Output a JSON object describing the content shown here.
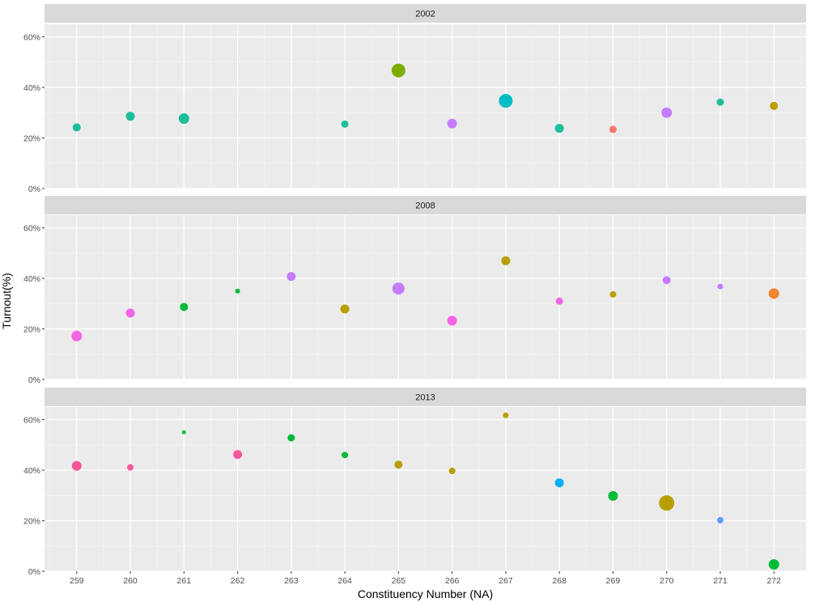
{
  "chart_data": {
    "type": "scatter",
    "xlabel": "Constituency Number (NA)",
    "ylabel": "Turnout(%)",
    "x_ticks": [
      "259",
      "260",
      "261",
      "262",
      "263",
      "264",
      "265",
      "266",
      "267",
      "268",
      "269",
      "270",
      "271",
      "272"
    ],
    "xlim": [
      258.4,
      272.6
    ],
    "ylim": [
      0,
      65
    ],
    "y_ticks": [
      {
        "value": 0,
        "label": "0%"
      },
      {
        "value": 20,
        "label": "20%"
      },
      {
        "value": 40,
        "label": "40%"
      },
      {
        "value": 60,
        "label": "60%"
      }
    ],
    "grid": true,
    "legend": "none",
    "panels": [
      {
        "title": "2002",
        "points": [
          {
            "x": 259,
            "y": 24.2,
            "size": 5,
            "color": "#1cbf9a"
          },
          {
            "x": 260,
            "y": 28.6,
            "size": 5.5,
            "color": "#1cbf9a"
          },
          {
            "x": 261,
            "y": 27.7,
            "size": 6.5,
            "color": "#1cbf9a"
          },
          {
            "x": 264,
            "y": 25.5,
            "size": 4.5,
            "color": "#1cbf9a"
          },
          {
            "x": 265,
            "y": 46.7,
            "size": 8.5,
            "color": "#7cae00"
          },
          {
            "x": 266,
            "y": 25.7,
            "size": 6,
            "color": "#c77cff"
          },
          {
            "x": 267,
            "y": 34.7,
            "size": 8.5,
            "color": "#00bfc4"
          },
          {
            "x": 268,
            "y": 23.8,
            "size": 5.5,
            "color": "#1cbf9a"
          },
          {
            "x": 269,
            "y": 23.4,
            "size": 4.5,
            "color": "#f8766d"
          },
          {
            "x": 270,
            "y": 30.0,
            "size": 6.5,
            "color": "#c77cff"
          },
          {
            "x": 271,
            "y": 34.2,
            "size": 4.5,
            "color": "#1cbf9a"
          },
          {
            "x": 272,
            "y": 32.7,
            "size": 5,
            "color": "#b79f00"
          }
        ]
      },
      {
        "title": "2008",
        "points": [
          {
            "x": 259,
            "y": 17.2,
            "size": 6.5,
            "color": "#f564e3"
          },
          {
            "x": 260,
            "y": 26.3,
            "size": 5.5,
            "color": "#f564e3"
          },
          {
            "x": 261,
            "y": 28.7,
            "size": 5,
            "color": "#00ba38"
          },
          {
            "x": 262,
            "y": 35.0,
            "size": 3,
            "color": "#00ba38"
          },
          {
            "x": 263,
            "y": 40.8,
            "size": 5.5,
            "color": "#c77cff"
          },
          {
            "x": 264,
            "y": 27.9,
            "size": 5.5,
            "color": "#b79f00"
          },
          {
            "x": 265,
            "y": 36.0,
            "size": 7.5,
            "color": "#c77cff"
          },
          {
            "x": 266,
            "y": 23.3,
            "size": 6,
            "color": "#f564e3"
          },
          {
            "x": 267,
            "y": 47.0,
            "size": 5.5,
            "color": "#b79f00"
          },
          {
            "x": 268,
            "y": 31.0,
            "size": 4.5,
            "color": "#f564e3"
          },
          {
            "x": 269,
            "y": 33.7,
            "size": 4,
            "color": "#b79f00"
          },
          {
            "x": 270,
            "y": 39.3,
            "size": 5,
            "color": "#c77cff"
          },
          {
            "x": 271,
            "y": 36.8,
            "size": 3.5,
            "color": "#c77cff"
          },
          {
            "x": 272,
            "y": 34.0,
            "size": 6.5,
            "color": "#f08732"
          }
        ]
      },
      {
        "title": "2013",
        "points": [
          {
            "x": 259,
            "y": 41.7,
            "size": 6,
            "color": "#f8569b"
          },
          {
            "x": 260,
            "y": 41.1,
            "size": 4,
            "color": "#f8569b"
          },
          {
            "x": 261,
            "y": 55.0,
            "size": 2.5,
            "color": "#00ba38"
          },
          {
            "x": 262,
            "y": 46.2,
            "size": 5.5,
            "color": "#f8569b"
          },
          {
            "x": 263,
            "y": 52.8,
            "size": 4.5,
            "color": "#00ba38"
          },
          {
            "x": 264,
            "y": 46.0,
            "size": 4,
            "color": "#00ba38"
          },
          {
            "x": 265,
            "y": 42.2,
            "size": 5,
            "color": "#b79f00"
          },
          {
            "x": 266,
            "y": 39.7,
            "size": 4,
            "color": "#b79f00"
          },
          {
            "x": 267,
            "y": 61.7,
            "size": 3.5,
            "color": "#b79f00"
          },
          {
            "x": 268,
            "y": 35.0,
            "size": 5.5,
            "color": "#00b0f6"
          },
          {
            "x": 269,
            "y": 29.8,
            "size": 6,
            "color": "#00ba38"
          },
          {
            "x": 270,
            "y": 27.0,
            "size": 9.5,
            "color": "#b79f00"
          },
          {
            "x": 271,
            "y": 20.2,
            "size": 4,
            "color": "#619cff"
          },
          {
            "x": 272,
            "y": 2.7,
            "size": 6.5,
            "color": "#00ba38"
          }
        ]
      }
    ]
  }
}
